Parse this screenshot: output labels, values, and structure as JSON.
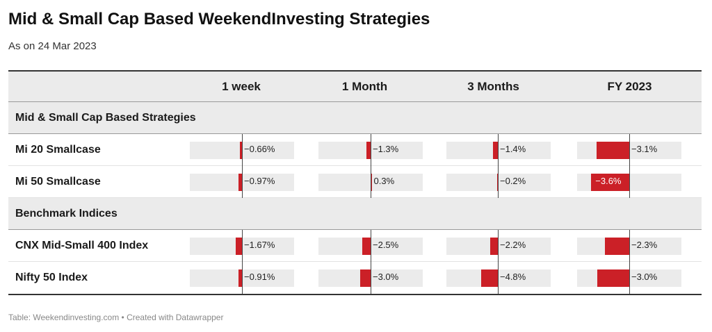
{
  "title": "Mid & Small Cap Based WeekendInvesting Strategies",
  "subtitle": "As on 24 Mar 2023",
  "footer": "Table: Weekendinvesting.com • Created with Datawrapper",
  "colors": {
    "bar": "#cb2027",
    "bar_bg": "#ebebeb"
  },
  "columns": [
    "1 week",
    "1 Month",
    "3 Months",
    "FY 2023"
  ],
  "groups": [
    {
      "label": "Mid & Small Cap Based Strategies",
      "rows": [
        {
          "name": "Mi 20 Smallcase",
          "labels": [
            "−0.66%",
            "−1.3%",
            "−1.4%",
            "−3.1%"
          ]
        },
        {
          "name": "Mi 50 Smallcase",
          "labels": [
            "−0.97%",
            "0.3%",
            "−0.2%",
            "−3.6%"
          ]
        }
      ]
    },
    {
      "label": "Benchmark Indices",
      "rows": [
        {
          "name": "CNX Mid-Small 400 Index",
          "labels": [
            "−1.67%",
            "−2.5%",
            "−2.2%",
            "−2.3%"
          ]
        },
        {
          "name": "Nifty 50 Index",
          "labels": [
            "−0.91%",
            "−3.0%",
            "−4.8%",
            "−3.0%"
          ]
        }
      ]
    }
  ],
  "chart_data": {
    "type": "table",
    "title": "Mid & Small Cap Based WeekendInvesting Strategies",
    "subtitle": "As on 24 Mar 2023",
    "categories": [
      "1 week",
      "1 Month",
      "3 Months",
      "FY 2023"
    ],
    "series": [
      {
        "name": "Mi 20 Smallcase",
        "values": [
          -0.66,
          -1.3,
          -1.4,
          -3.1
        ]
      },
      {
        "name": "Mi 50 Smallcase",
        "values": [
          -0.97,
          0.3,
          -0.2,
          -3.6
        ]
      },
      {
        "name": "CNX Mid-Small 400 Index",
        "values": [
          -1.67,
          -2.5,
          -2.2,
          -2.3
        ]
      },
      {
        "name": "Nifty 50 Index",
        "values": [
          -0.91,
          -3.0,
          -4.8,
          -3.0
        ]
      }
    ]
  }
}
